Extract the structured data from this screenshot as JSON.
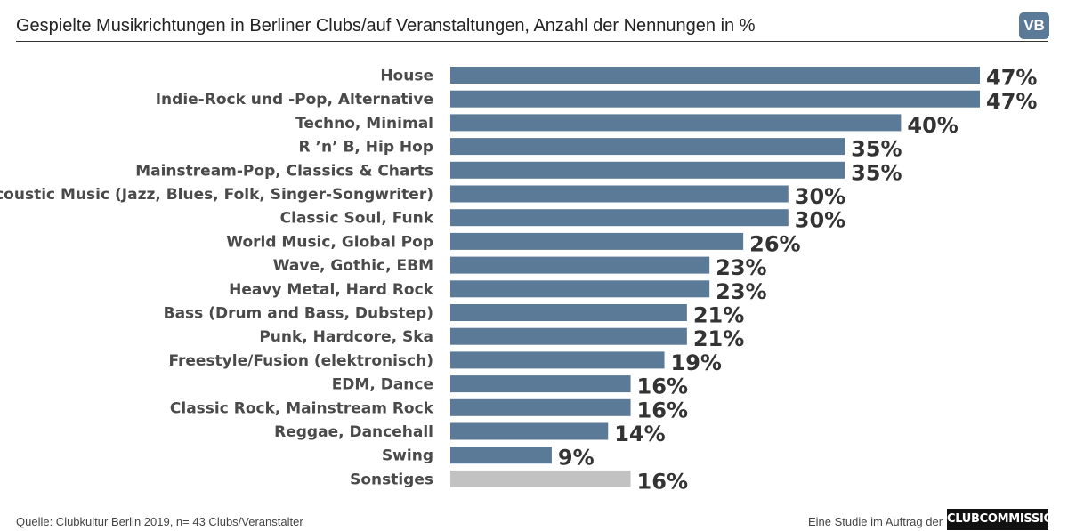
{
  "header": {
    "title": "Gespielte Musikrichtungen in Berliner Clubs/auf Veranstaltungen, Anzahl der Nennungen in %",
    "badge": "VB"
  },
  "footer": {
    "source": "Quelle: Clubkultur Berlin 2019, n= 43 Clubs/Veranstalter",
    "credit": "Eine Studie im Auftrag der",
    "logo_text": "CLUBCOMMISSION"
  },
  "colors": {
    "bar": "#5b7a97",
    "bar_other": "#c2c2c2",
    "badge": "#5b7a97"
  },
  "chart_data": {
    "type": "bar",
    "orientation": "horizontal",
    "categories": [
      "House",
      "Indie-Rock und -Pop, Alternative",
      "Techno, Minimal",
      "R ’n’ B, Hip Hop",
      "Mainstream-Pop, Classics & Charts",
      "Acoustic Music (Jazz, Blues, Folk, Singer-Songwriter)",
      "Classic Soul, Funk",
      "World Music, Global Pop",
      "Wave, Gothic, EBM",
      "Heavy Metal, Hard Rock",
      "Bass (Drum and Bass, Dubstep)",
      "Punk, Hardcore, Ska",
      "Freestyle/Fusion (elektronisch)",
      "EDM, Dance",
      "Classic Rock, Mainstream Rock",
      "Reggae, Dancehall",
      "Swing",
      "Sonstiges"
    ],
    "values": [
      47,
      47,
      40,
      35,
      35,
      30,
      30,
      26,
      23,
      23,
      21,
      21,
      19,
      16,
      16,
      14,
      9,
      16
    ],
    "value_labels": [
      "47%",
      "47%",
      "40%",
      "35%",
      "35%",
      "30%",
      "30%",
      "26%",
      "23%",
      "23%",
      "21%",
      "21%",
      "19%",
      "16%",
      "16%",
      "14%",
      "9%",
      "16%"
    ],
    "highlight_other": "Sonstiges",
    "xlim": [
      0,
      47
    ],
    "grid": false,
    "legend": false
  }
}
